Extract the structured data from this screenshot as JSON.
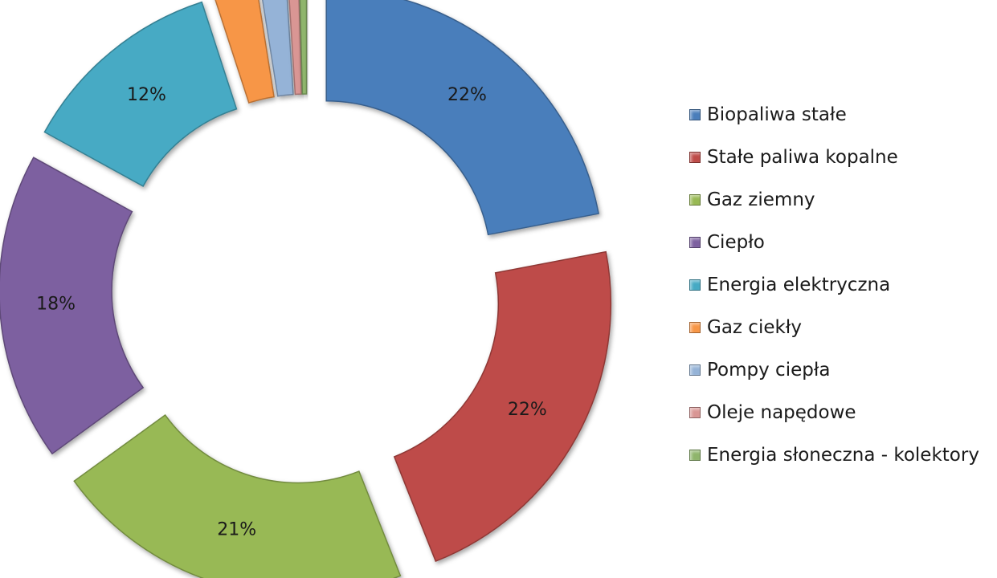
{
  "chart_data": {
    "type": "pie",
    "title": "",
    "labels": [
      "Biopaliwa stałe",
      "Stałe paliwa kopalne",
      "Gaz ziemny",
      "Ciepło",
      "Energia elektryczna",
      "Gaz ciekły",
      "Pompy ciepła",
      "Oleje napędowe",
      "Energia słoneczna - kolektory"
    ],
    "values": [
      22,
      22,
      21,
      18,
      12,
      2.5,
      1.5,
      0.6,
      0.4
    ],
    "data_labels": [
      "22%",
      "22%",
      "21%",
      "18%",
      "12%",
      "",
      "",
      "",
      ""
    ],
    "colors": [
      "#4a7ebb",
      "#be4b48",
      "#98b954",
      "#7d60a0",
      "#46aac4",
      "#f79646",
      "#95b3d7",
      "#d99694",
      "#8fb56c"
    ],
    "legend_position": "right"
  }
}
